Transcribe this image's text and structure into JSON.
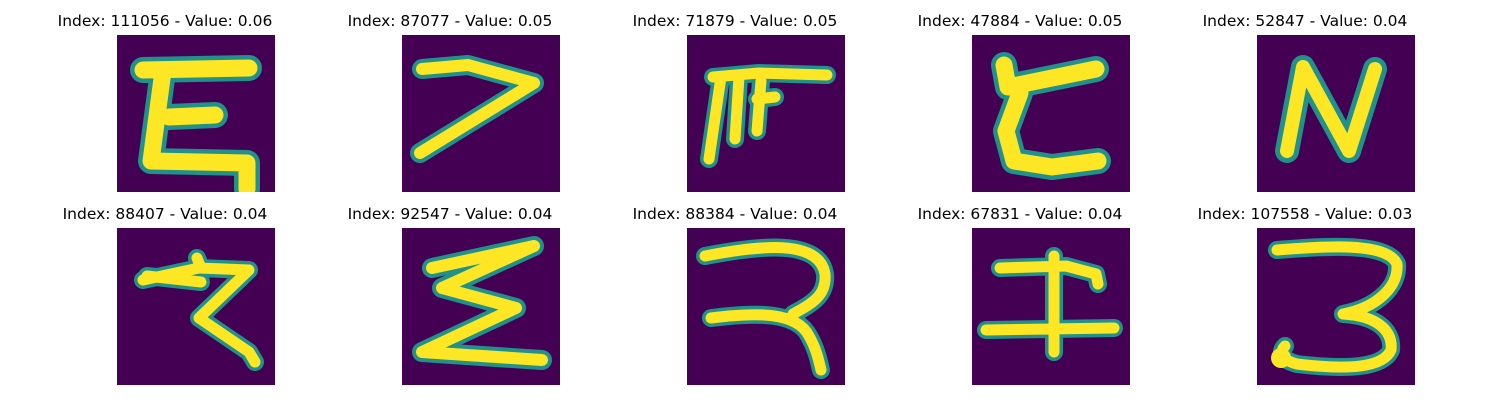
{
  "colors": {
    "background": "#440154",
    "stroke": "#fde725",
    "edge": "#21918c"
  },
  "panels": [
    {
      "title": "Index: 111056 - Value: 0.06",
      "icon": "handwritten-glyph-icon"
    },
    {
      "title": "Index: 87077 - Value: 0.05",
      "icon": "handwritten-glyph-icon"
    },
    {
      "title": "Index: 71879 - Value: 0.05",
      "icon": "handwritten-glyph-icon"
    },
    {
      "title": "Index: 47884 - Value: 0.05",
      "icon": "handwritten-glyph-icon"
    },
    {
      "title": "Index: 52847 - Value: 0.04",
      "icon": "handwritten-glyph-icon"
    },
    {
      "title": "Index: 88407 - Value: 0.04",
      "icon": "handwritten-glyph-icon"
    },
    {
      "title": "Index: 92547 - Value: 0.04",
      "icon": "handwritten-glyph-icon"
    },
    {
      "title": "Index: 88384 - Value: 0.04",
      "icon": "handwritten-glyph-icon"
    },
    {
      "title": "Index: 67831 - Value: 0.04",
      "icon": "handwritten-glyph-icon"
    },
    {
      "title": "Index: 107558 - Value: 0.03",
      "icon": "handwritten-glyph-icon"
    }
  ]
}
